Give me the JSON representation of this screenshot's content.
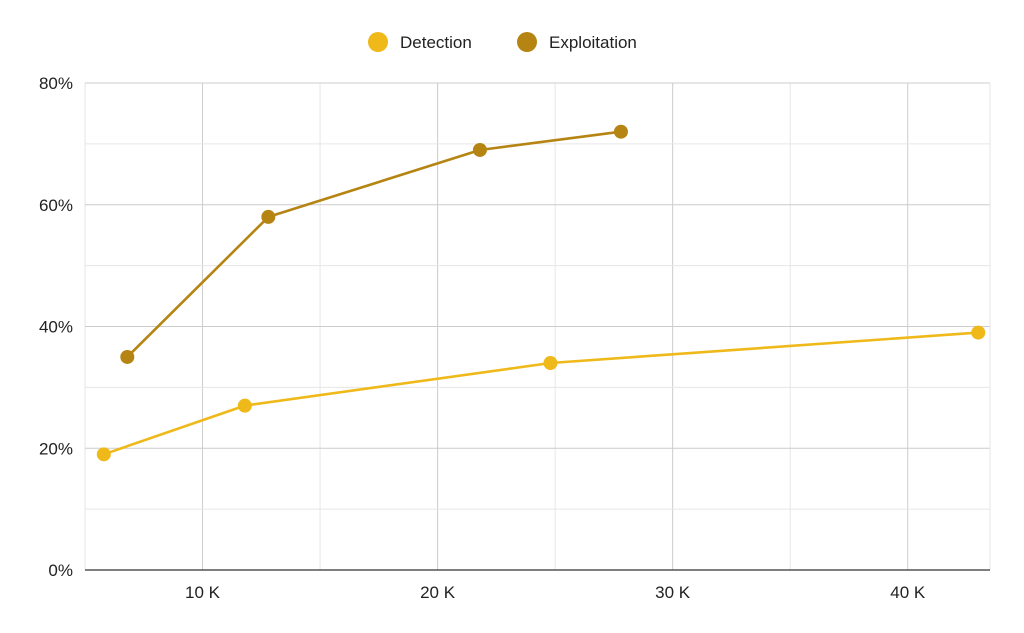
{
  "chart_data": {
    "type": "line",
    "title": "",
    "xlabel": "",
    "ylabel": "",
    "xlim": [
      5000,
      43500
    ],
    "ylim": [
      0,
      80
    ],
    "x_ticks": [
      10000,
      20000,
      30000,
      40000
    ],
    "x_tick_labels": [
      "10 K",
      "20 K",
      "30 K",
      "40 K"
    ],
    "y_ticks": [
      0,
      20,
      40,
      60,
      80
    ],
    "y_tick_labels": [
      "0%",
      "20%",
      "40%",
      "60%",
      "80%"
    ],
    "grid": true,
    "legend_position": "top-center",
    "series": [
      {
        "name": "Detection",
        "color": "#EFB91A",
        "x": [
          5800,
          11800,
          24800,
          43000
        ],
        "y": [
          19,
          27,
          34,
          39
        ]
      },
      {
        "name": "Exploitation",
        "color": "#B58412",
        "x": [
          6800,
          12800,
          21800,
          27800
        ],
        "y": [
          35,
          58,
          69,
          72
        ]
      }
    ]
  }
}
